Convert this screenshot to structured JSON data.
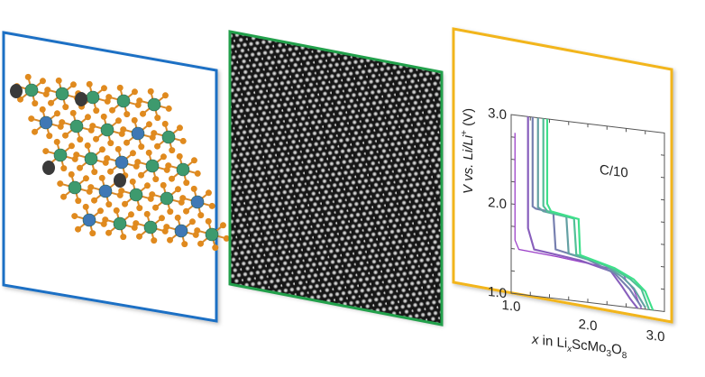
{
  "panels": {
    "structure": {
      "frame_color": "#1f6fc4",
      "atom_colors": {
        "metal": "#3e9a6e",
        "scandium": "#3f78b5",
        "oxygen": "#e08a1e",
        "lithium": "#3a3a3a"
      }
    },
    "micrograph": {
      "frame_color": "#22a04b"
    },
    "chart": {
      "frame_color": "#f2b51a"
    }
  },
  "chart_data": {
    "type": "line",
    "annotation": "C/10",
    "xlabel": {
      "var": "x",
      "mid": " in Li",
      "sub1": "x",
      "mid2": "ScMo",
      "sub2": "3",
      "mid3": "O",
      "sub3": "8"
    },
    "ylabel": {
      "var": "V",
      "mid": " vs. ",
      "ref": "Li/Li",
      "sup": "+",
      "unit": " (V)"
    },
    "xlim": [
      1.0,
      3.0
    ],
    "ylim": [
      1.0,
      3.0
    ],
    "xticks": [
      "1.0",
      "2.0",
      "3.0"
    ],
    "yticks": [
      "1.0",
      "2.0",
      "3.0"
    ],
    "color_start": "#9b3fc8",
    "color_end": "#3ee08a",
    "series": [
      {
        "values": [
          [
            1.05,
            2.8
          ],
          [
            1.05,
            1.6
          ],
          [
            1.1,
            1.5
          ],
          [
            1.6,
            1.47
          ],
          [
            2.2,
            1.42
          ],
          [
            2.45,
            1.38
          ],
          [
            2.5,
            1.3
          ],
          [
            2.6,
            1.2
          ],
          [
            2.7,
            1.0
          ]
        ]
      },
      {
        "values": [
          [
            1.22,
            3.0
          ],
          [
            1.22,
            1.75
          ],
          [
            1.3,
            1.52
          ],
          [
            1.9,
            1.46
          ],
          [
            2.3,
            1.38
          ],
          [
            2.45,
            1.22
          ],
          [
            2.55,
            1.1
          ],
          [
            2.65,
            1.0
          ]
        ]
      },
      {
        "values": [
          [
            1.28,
            3.0
          ],
          [
            1.28,
            2.0
          ],
          [
            1.32,
            1.98
          ],
          [
            1.55,
            1.96
          ],
          [
            1.58,
            1.55
          ],
          [
            2.0,
            1.48
          ],
          [
            2.35,
            1.36
          ],
          [
            2.55,
            1.2
          ],
          [
            2.7,
            1.02
          ]
        ]
      },
      {
        "values": [
          [
            1.35,
            3.0
          ],
          [
            1.35,
            2.0
          ],
          [
            1.42,
            1.96
          ],
          [
            1.72,
            1.93
          ],
          [
            1.75,
            1.52
          ],
          [
            2.2,
            1.45
          ],
          [
            2.45,
            1.33
          ],
          [
            2.6,
            1.22
          ],
          [
            2.75,
            1.02
          ]
        ]
      },
      {
        "values": [
          [
            1.42,
            3.0
          ],
          [
            1.42,
            2.02
          ],
          [
            1.48,
            1.96
          ],
          [
            1.82,
            1.92
          ],
          [
            1.85,
            1.52
          ],
          [
            2.3,
            1.42
          ],
          [
            2.55,
            1.32
          ],
          [
            2.7,
            1.22
          ],
          [
            2.8,
            1.0
          ]
        ]
      },
      {
        "values": [
          [
            1.47,
            3.0
          ],
          [
            1.47,
            2.05
          ],
          [
            1.52,
            1.97
          ],
          [
            1.88,
            1.92
          ],
          [
            1.9,
            1.52
          ],
          [
            2.35,
            1.42
          ],
          [
            2.6,
            1.32
          ],
          [
            2.75,
            1.2
          ],
          [
            2.85,
            1.0
          ]
        ]
      }
    ]
  }
}
